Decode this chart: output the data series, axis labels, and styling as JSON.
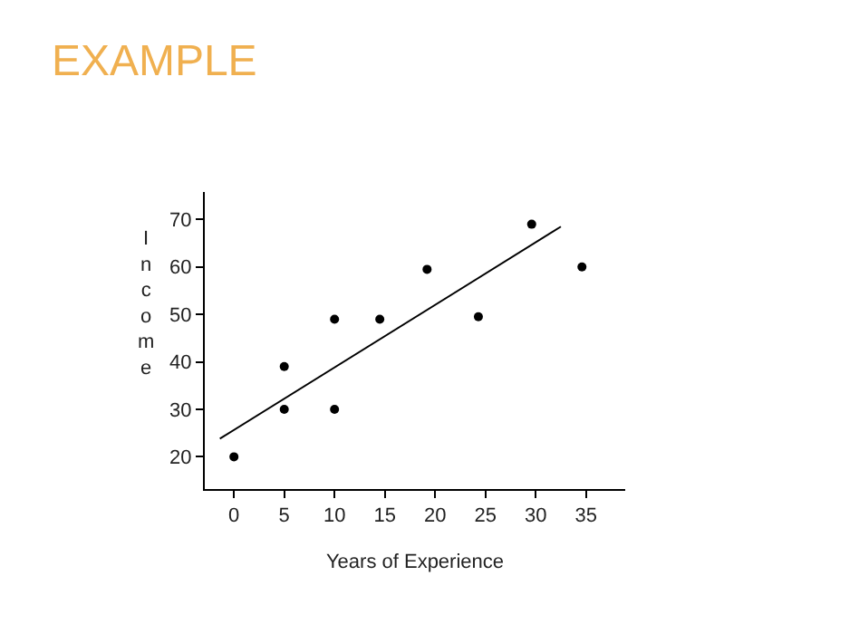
{
  "chart_data": {
    "type": "scatter",
    "title": "EXAMPLE",
    "xlabel": "Years of Experience",
    "ylabel": "Income",
    "xlim": [
      -2.9,
      38.9
    ],
    "ylim": [
      13.2,
      75.8
    ],
    "xticks": [
      0,
      5,
      10,
      15,
      20,
      25,
      30,
      35
    ],
    "yticks": [
      20,
      30,
      40,
      50,
      60,
      70
    ],
    "marker": "circle",
    "series": [
      {
        "color": "#000000",
        "x": [
          0,
          5,
          5,
          10,
          10,
          14.5,
          19.2,
          24.3,
          29.6,
          34.6
        ],
        "values": [
          20,
          30,
          39,
          30,
          49,
          49,
          59.5,
          49.5,
          69,
          60
        ]
      },
      {
        "type": "line",
        "color": "#000000",
        "marker": "none",
        "line_style": "solid",
        "x": [
          -1.4,
          32.5
        ],
        "values": [
          23.8,
          68.5
        ]
      }
    ]
  }
}
